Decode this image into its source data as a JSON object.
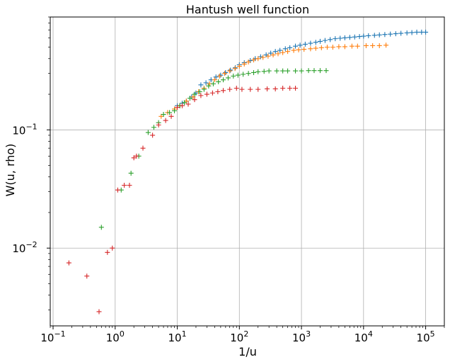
{
  "chart_data": {
    "type": "scatter",
    "title": "Hantush well function",
    "xlabel": "1/u",
    "ylabel": "W(u, rho)",
    "xscale": "log",
    "yscale": "log",
    "xlim": [
      0.09,
      200000
    ],
    "ylim": [
      0.0022,
      0.9
    ],
    "grid": true,
    "marker": "+",
    "x_major_ticks": [
      {
        "value": 0.1,
        "base": "10",
        "exp": "−1"
      },
      {
        "value": 1,
        "base": "10",
        "exp": "0"
      },
      {
        "value": 10,
        "base": "10",
        "exp": "1"
      },
      {
        "value": 100,
        "base": "10",
        "exp": "2"
      },
      {
        "value": 1000,
        "base": "10",
        "exp": "3"
      },
      {
        "value": 10000,
        "base": "10",
        "exp": "4"
      },
      {
        "value": 100000,
        "base": "10",
        "exp": "5"
      }
    ],
    "y_major_ticks": [
      {
        "value": 0.01,
        "base": "10",
        "exp": "−2"
      },
      {
        "value": 0.1,
        "base": "10",
        "exp": "−1"
      }
    ],
    "series": [
      {
        "color": "#1f77b4",
        "points": [
          [
            10,
            0.16
          ],
          [
            12,
            0.168
          ],
          [
            14,
            0.175
          ],
          [
            17,
            0.19
          ],
          [
            20,
            0.205
          ],
          [
            24,
            0.24
          ],
          [
            29,
            0.25
          ],
          [
            35,
            0.265
          ],
          [
            42,
            0.28
          ],
          [
            50,
            0.29
          ],
          [
            60,
            0.305
          ],
          [
            72,
            0.32
          ],
          [
            86,
            0.335
          ],
          [
            100,
            0.355
          ],
          [
            120,
            0.37
          ],
          [
            150,
            0.385
          ],
          [
            180,
            0.4
          ],
          [
            220,
            0.415
          ],
          [
            270,
            0.43
          ],
          [
            320,
            0.445
          ],
          [
            380,
            0.46
          ],
          [
            450,
            0.47
          ],
          [
            550,
            0.485
          ],
          [
            650,
            0.495
          ],
          [
            800,
            0.51
          ],
          [
            950,
            0.52
          ],
          [
            1150,
            0.53
          ],
          [
            1400,
            0.54
          ],
          [
            1700,
            0.55
          ],
          [
            2000,
            0.56
          ],
          [
            2400,
            0.57
          ],
          [
            2900,
            0.58
          ],
          [
            3500,
            0.59
          ],
          [
            4200,
            0.595
          ],
          [
            5000,
            0.6
          ],
          [
            6000,
            0.605
          ],
          [
            7200,
            0.61
          ],
          [
            8600,
            0.615
          ],
          [
            10000,
            0.62
          ],
          [
            12000,
            0.625
          ],
          [
            15000,
            0.63
          ],
          [
            18000,
            0.635
          ],
          [
            22000,
            0.64
          ],
          [
            27000,
            0.645
          ],
          [
            33000,
            0.65
          ],
          [
            40000,
            0.655
          ],
          [
            50000,
            0.66
          ],
          [
            60000,
            0.665
          ],
          [
            72000,
            0.67
          ],
          [
            86000,
            0.67
          ],
          [
            100000,
            0.67
          ]
        ]
      },
      {
        "color": "#ff7f0e",
        "points": [
          [
            5.5,
            0.13
          ],
          [
            7,
            0.14
          ],
          [
            9,
            0.15
          ],
          [
            11,
            0.16
          ],
          [
            14,
            0.175
          ],
          [
            18,
            0.19
          ],
          [
            22,
            0.21
          ],
          [
            27,
            0.225
          ],
          [
            33,
            0.245
          ],
          [
            40,
            0.265
          ],
          [
            48,
            0.285
          ],
          [
            58,
            0.3
          ],
          [
            70,
            0.315
          ],
          [
            85,
            0.33
          ],
          [
            100,
            0.345
          ],
          [
            120,
            0.36
          ],
          [
            140,
            0.375
          ],
          [
            170,
            0.39
          ],
          [
            200,
            0.4
          ],
          [
            240,
            0.41
          ],
          [
            290,
            0.42
          ],
          [
            350,
            0.43
          ],
          [
            420,
            0.44
          ],
          [
            500,
            0.45
          ],
          [
            600,
            0.46
          ],
          [
            750,
            0.47
          ],
          [
            900,
            0.475
          ],
          [
            1100,
            0.48
          ],
          [
            1400,
            0.485
          ],
          [
            1700,
            0.49
          ],
          [
            2100,
            0.495
          ],
          [
            2600,
            0.5
          ],
          [
            3200,
            0.5
          ],
          [
            4000,
            0.505
          ],
          [
            5000,
            0.505
          ],
          [
            6500,
            0.51
          ],
          [
            8000,
            0.51
          ],
          [
            11000,
            0.515
          ],
          [
            14000,
            0.515
          ],
          [
            18000,
            0.515
          ],
          [
            23000,
            0.52
          ]
        ]
      },
      {
        "color": "#2ca02c",
        "points": [
          [
            0.6,
            0.015
          ],
          [
            1.25,
            0.031
          ],
          [
            1.8,
            0.043
          ],
          [
            2.4,
            0.06
          ],
          [
            3.4,
            0.095
          ],
          [
            4.2,
            0.105
          ],
          [
            5,
            0.115
          ],
          [
            6,
            0.135
          ],
          [
            7.5,
            0.14
          ],
          [
            9,
            0.145
          ],
          [
            11,
            0.16
          ],
          [
            13,
            0.17
          ],
          [
            16,
            0.185
          ],
          [
            19,
            0.2
          ],
          [
            23,
            0.21
          ],
          [
            27,
            0.22
          ],
          [
            32,
            0.235
          ],
          [
            38,
            0.245
          ],
          [
            46,
            0.255
          ],
          [
            55,
            0.265
          ],
          [
            66,
            0.275
          ],
          [
            80,
            0.285
          ],
          [
            95,
            0.29
          ],
          [
            115,
            0.295
          ],
          [
            140,
            0.3
          ],
          [
            170,
            0.305
          ],
          [
            200,
            0.31
          ],
          [
            250,
            0.312
          ],
          [
            300,
            0.315
          ],
          [
            400,
            0.315
          ],
          [
            500,
            0.315
          ],
          [
            600,
            0.315
          ],
          [
            800,
            0.315
          ],
          [
            1000,
            0.315
          ],
          [
            1300,
            0.317
          ],
          [
            1600,
            0.317
          ],
          [
            2000,
            0.317
          ],
          [
            2500,
            0.317
          ]
        ]
      },
      {
        "color": "#d62728",
        "points": [
          [
            0.18,
            0.0075
          ],
          [
            0.35,
            0.0058
          ],
          [
            0.55,
            0.0029
          ],
          [
            0.75,
            0.0092
          ],
          [
            0.9,
            0.01
          ],
          [
            1.1,
            0.031
          ],
          [
            1.4,
            0.034
          ],
          [
            1.7,
            0.034
          ],
          [
            2,
            0.058
          ],
          [
            2.2,
            0.06
          ],
          [
            2.8,
            0.07
          ],
          [
            4,
            0.09
          ],
          [
            5,
            0.11
          ],
          [
            6.5,
            0.12
          ],
          [
            8,
            0.13
          ],
          [
            10,
            0.155
          ],
          [
            12,
            0.16
          ],
          [
            15,
            0.165
          ],
          [
            19,
            0.18
          ],
          [
            24,
            0.195
          ],
          [
            30,
            0.2
          ],
          [
            37,
            0.205
          ],
          [
            45,
            0.21
          ],
          [
            55,
            0.215
          ],
          [
            70,
            0.22
          ],
          [
            90,
            0.225
          ],
          [
            110,
            0.22
          ],
          [
            150,
            0.22
          ],
          [
            200,
            0.22
          ],
          [
            280,
            0.222
          ],
          [
            380,
            0.222
          ],
          [
            500,
            0.225
          ],
          [
            650,
            0.225
          ],
          [
            800,
            0.225
          ]
        ]
      }
    ]
  }
}
